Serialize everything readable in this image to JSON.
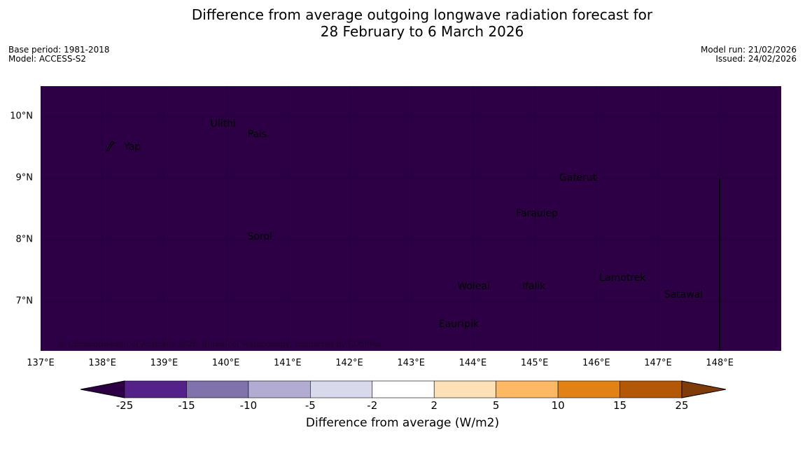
{
  "title": {
    "line1": "Difference from average outgoing longwave radiation forecast for",
    "line2": "28 February to 6 March 2026"
  },
  "meta": {
    "base_period": "Base period: 1981-2018",
    "model": "Model: ACCESS-S2",
    "model_run": "Model run: 21/02/2026",
    "issued": "Issued: 24/02/2026"
  },
  "map": {
    "fill_color": "#2d0045",
    "copyright": "© Commonwealth of Australia 2026, Bureau of Meteorology, supported by COSPPac",
    "lat_labels": [
      "10°N",
      "9°N",
      "8°N",
      "7°N"
    ],
    "lon_labels": [
      "137°E",
      "138°E",
      "139°E",
      "140°E",
      "141°E",
      "142°E",
      "143°E",
      "144°E",
      "145°E",
      "146°E",
      "147°E",
      "148°E"
    ],
    "places": [
      {
        "name": "Ulithi",
        "lon": 139.75,
        "lat": 9.87
      },
      {
        "name": "Pais",
        "lon": 140.35,
        "lat": 9.7
      },
      {
        "name": "Yap",
        "lon": 138.35,
        "lat": 9.5
      },
      {
        "name": "Gaferut",
        "lon": 145.4,
        "lat": 9.0
      },
      {
        "name": "Faraulep",
        "lon": 144.7,
        "lat": 8.42
      },
      {
        "name": "Sorol",
        "lon": 140.35,
        "lat": 8.05
      },
      {
        "name": "Lamotrek",
        "lon": 146.05,
        "lat": 7.37
      },
      {
        "name": "Satawal",
        "lon": 147.1,
        "lat": 7.1
      },
      {
        "name": "Woleai",
        "lon": 143.75,
        "lat": 7.24
      },
      {
        "name": "Ifalik",
        "lon": 144.8,
        "lat": 7.24
      },
      {
        "name": "Eauripik",
        "lon": 143.45,
        "lat": 6.63
      }
    ]
  },
  "colorbar": {
    "label": "Difference from average (W/m2)",
    "ticks": [
      "-25",
      "-15",
      "-10",
      "-5",
      "-2",
      "2",
      "5",
      "10",
      "15",
      "25"
    ],
    "colors": [
      "#2d0045",
      "#542188",
      "#8073ac",
      "#b2abd2",
      "#d8daeb",
      "#ffffff",
      "#fee0b6",
      "#fdb863",
      "#e08214",
      "#b35806",
      "#7f3b08"
    ]
  }
}
